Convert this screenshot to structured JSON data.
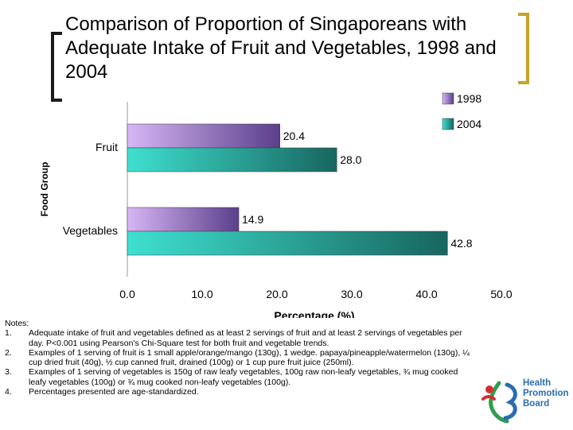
{
  "title": "Comparison of Proportion of Singaporeans with Adequate Intake of Fruit and Vegetables, 1998 and 2004",
  "chart_data": {
    "type": "bar",
    "orientation": "horizontal",
    "categories": [
      "Fruit",
      "Vegetables"
    ],
    "series": [
      {
        "name": "1998",
        "values": [
          20.4,
          14.9
        ],
        "color": "#8a6bbf"
      },
      {
        "name": "2004",
        "values": [
          28.0,
          42.8
        ],
        "color": "#2a8f86"
      }
    ],
    "xlabel": "Percentage (%)",
    "ylabel": "Food Group",
    "xlim": [
      0,
      50
    ],
    "xticks": [
      "0.0",
      "10.0",
      "20.0",
      "30.0",
      "40.0",
      "50.0"
    ],
    "value_labels": [
      [
        "20.4",
        "14.9"
      ],
      [
        "28.0",
        "42.8"
      ]
    ],
    "legend_position": "top-right",
    "grid": false
  },
  "notes": {
    "heading": "Notes:",
    "items": [
      {
        "num": "1.",
        "text": "Adequate intake of fruit and vegetables defined as at least 2 servings of fruit and at least 2 servings of vegetables per day. P<0.001 using Pearson's Chi-Square test for both fruit and vegetable trends."
      },
      {
        "num": "2.",
        "text": "Examples of 1 serving of fruit is 1 small apple/orange/mango (130g), 1 wedge. papaya/pineapple/watermelon (130g), ¼ cup dried fruit (40g), ½ cup canned fruit, drained (100g) or 1 cup pure fruit juice (250ml)."
      },
      {
        "num": "3.",
        "text": "Examples of 1 serving of vegetables is 150g of raw leafy vegetables, 100g raw non-leafy vegetables, ¾ mug cooked leafy vegetables (100g) or ¾ mug cooked non-leafy vegetables (100g)."
      },
      {
        "num": "4.",
        "text": "Percentages presented are age-standardized."
      }
    ]
  },
  "logo": {
    "lines": [
      "Health",
      "Promotion",
      "Board"
    ],
    "colors": {
      "red": "#d32f2f",
      "green": "#2e9e4f",
      "blue": "#2b6cb0"
    }
  }
}
